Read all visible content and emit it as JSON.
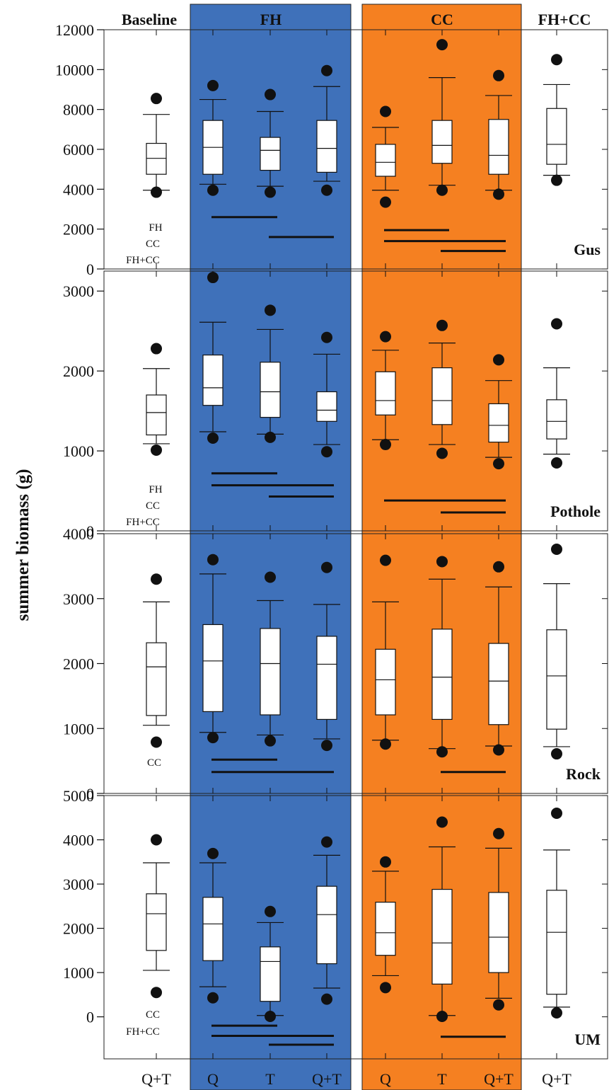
{
  "ylabel": "summer biomass (g)",
  "x_tick_labels": [
    "Q+T",
    "Q",
    "T",
    "Q+T",
    "Q",
    "T",
    "Q+T",
    "Q+T"
  ],
  "group_headers": [
    "Baseline",
    "FH",
    "CC",
    "FH+CC"
  ],
  "colors": {
    "fh": "#3f71ba",
    "cc": "#f58021",
    "box_fill": "#ffffff",
    "ink": "#111111"
  },
  "chart_data": [
    {
      "type": "box",
      "panel": "Gus",
      "ylim": [
        0,
        12000
      ],
      "yticks": [
        0,
        2000,
        4000,
        6000,
        8000,
        10000,
        12000
      ],
      "ytick_labels": [
        "0",
        "2000",
        "4000",
        "6000",
        "8000",
        "10000",
        "12000"
      ],
      "boxes": [
        {
          "group": "Baseline",
          "treatment": "Q+T",
          "low_outlier": 3850,
          "whisker_low": 3950,
          "q1": 4750,
          "median": 5550,
          "q3": 6300,
          "whisker_high": 7750,
          "high_outlier": 8550
        },
        {
          "group": "FH",
          "treatment": "Q",
          "low_outlier": 3950,
          "whisker_low": 4250,
          "q1": 4750,
          "median": 6100,
          "q3": 7450,
          "whisker_high": 8500,
          "high_outlier": 9200
        },
        {
          "group": "FH",
          "treatment": "T",
          "low_outlier": 3850,
          "whisker_low": 4150,
          "q1": 4950,
          "median": 5950,
          "q3": 6600,
          "whisker_high": 7900,
          "high_outlier": 8750
        },
        {
          "group": "FH",
          "treatment": "Q+T",
          "low_outlier": 3950,
          "whisker_low": 4400,
          "q1": 4850,
          "median": 6050,
          "q3": 7450,
          "whisker_high": 9150,
          "high_outlier": 9950
        },
        {
          "group": "CC",
          "treatment": "Q",
          "low_outlier": 3350,
          "whisker_low": 3950,
          "q1": 4650,
          "median": 5350,
          "q3": 6250,
          "whisker_high": 7100,
          "high_outlier": 7900
        },
        {
          "group": "CC",
          "treatment": "T",
          "low_outlier": 3950,
          "whisker_low": 4200,
          "q1": 5300,
          "median": 6200,
          "q3": 7450,
          "whisker_high": 9600,
          "high_outlier": 11250
        },
        {
          "group": "CC",
          "treatment": "Q+T",
          "low_outlier": 3750,
          "whisker_low": 3950,
          "q1": 4750,
          "median": 5700,
          "q3": 7500,
          "whisker_high": 8700,
          "high_outlier": 9700
        },
        {
          "group": "FH+CC",
          "treatment": "Q+T",
          "low_outlier": 4450,
          "whisker_low": 4700,
          "q1": 5250,
          "median": 6250,
          "q3": 8050,
          "whisker_high": 9250,
          "high_outlier": 10500
        }
      ],
      "significance_lines": [
        {
          "from": 1,
          "to": 2,
          "y": 2600
        },
        {
          "from": 2,
          "to": 3,
          "y": 1600
        },
        {
          "from": 4,
          "to": 5,
          "y": 1950
        },
        {
          "from": 4,
          "to": 6,
          "y": 1400
        },
        {
          "from": 5,
          "to": 6,
          "y": 900
        }
      ],
      "baseline_notes": [
        "FH",
        "CC",
        "FH+CC"
      ]
    },
    {
      "type": "box",
      "panel": "Pothole",
      "ylim": [
        0,
        3250
      ],
      "yticks": [
        0,
        1000,
        2000,
        3000
      ],
      "ytick_labels": [
        "0",
        "1000",
        "2000",
        "3000"
      ],
      "boxes": [
        {
          "group": "Baseline",
          "treatment": "Q+T",
          "low_outlier": 1010,
          "whisker_low": 1090,
          "q1": 1200,
          "median": 1480,
          "q3": 1700,
          "whisker_high": 2030,
          "high_outlier": 2280
        },
        {
          "group": "FH",
          "treatment": "Q",
          "low_outlier": 1160,
          "whisker_low": 1240,
          "q1": 1570,
          "median": 1790,
          "q3": 2200,
          "whisker_high": 2610,
          "high_outlier": 3170
        },
        {
          "group": "FH",
          "treatment": "T",
          "low_outlier": 1170,
          "whisker_low": 1210,
          "q1": 1420,
          "median": 1740,
          "q3": 2110,
          "whisker_high": 2520,
          "high_outlier": 2760
        },
        {
          "group": "FH",
          "treatment": "Q+T",
          "low_outlier": 990,
          "whisker_low": 1080,
          "q1": 1370,
          "median": 1510,
          "q3": 1740,
          "whisker_high": 2210,
          "high_outlier": 2420
        },
        {
          "group": "CC",
          "treatment": "Q",
          "low_outlier": 1080,
          "whisker_low": 1140,
          "q1": 1450,
          "median": 1630,
          "q3": 1990,
          "whisker_high": 2260,
          "high_outlier": 2430
        },
        {
          "group": "CC",
          "treatment": "T",
          "low_outlier": 970,
          "whisker_low": 1080,
          "q1": 1330,
          "median": 1630,
          "q3": 2040,
          "whisker_high": 2350,
          "high_outlier": 2570
        },
        {
          "group": "CC",
          "treatment": "Q+T",
          "low_outlier": 840,
          "whisker_low": 920,
          "q1": 1110,
          "median": 1320,
          "q3": 1590,
          "whisker_high": 1880,
          "high_outlier": 2140
        },
        {
          "group": "FH+CC",
          "treatment": "Q+T",
          "low_outlier": 850,
          "whisker_low": 960,
          "q1": 1150,
          "median": 1370,
          "q3": 1640,
          "whisker_high": 2040,
          "high_outlier": 2590
        }
      ],
      "significance_lines": [
        {
          "from": 1,
          "to": 2,
          "y": 720
        },
        {
          "from": 1,
          "to": 3,
          "y": 570
        },
        {
          "from": 2,
          "to": 3,
          "y": 430
        },
        {
          "from": 4,
          "to": 6,
          "y": 380
        },
        {
          "from": 5,
          "to": 6,
          "y": 230
        }
      ],
      "baseline_notes": [
        "FH",
        "CC",
        "FH+CC"
      ]
    },
    {
      "type": "box",
      "panel": "Rock",
      "ylim": [
        0,
        4000
      ],
      "yticks": [
        0,
        1000,
        2000,
        3000,
        4000
      ],
      "ytick_labels": [
        "0",
        "1000",
        "2000",
        "3000",
        "4000"
      ],
      "boxes": [
        {
          "group": "Baseline",
          "treatment": "Q+T",
          "low_outlier": 790,
          "whisker_low": 1050,
          "q1": 1200,
          "median": 1950,
          "q3": 2320,
          "whisker_high": 2950,
          "high_outlier": 3300
        },
        {
          "group": "FH",
          "treatment": "Q",
          "low_outlier": 860,
          "whisker_low": 940,
          "q1": 1260,
          "median": 2040,
          "q3": 2600,
          "whisker_high": 3380,
          "high_outlier": 3600
        },
        {
          "group": "FH",
          "treatment": "T",
          "low_outlier": 810,
          "whisker_low": 900,
          "q1": 1210,
          "median": 2000,
          "q3": 2540,
          "whisker_high": 2970,
          "high_outlier": 3330
        },
        {
          "group": "FH",
          "treatment": "Q+T",
          "low_outlier": 740,
          "whisker_low": 840,
          "q1": 1140,
          "median": 1990,
          "q3": 2420,
          "whisker_high": 2910,
          "high_outlier": 3480
        },
        {
          "group": "CC",
          "treatment": "Q",
          "low_outlier": 760,
          "whisker_low": 820,
          "q1": 1210,
          "median": 1750,
          "q3": 2220,
          "whisker_high": 2950,
          "high_outlier": 3590
        },
        {
          "group": "CC",
          "treatment": "T",
          "low_outlier": 640,
          "whisker_low": 690,
          "q1": 1140,
          "median": 1790,
          "q3": 2530,
          "whisker_high": 3300,
          "high_outlier": 3570
        },
        {
          "group": "CC",
          "treatment": "Q+T",
          "low_outlier": 670,
          "whisker_low": 730,
          "q1": 1060,
          "median": 1730,
          "q3": 2310,
          "whisker_high": 3180,
          "high_outlier": 3490
        },
        {
          "group": "FH+CC",
          "treatment": "Q+T",
          "low_outlier": 610,
          "whisker_low": 720,
          "q1": 990,
          "median": 1810,
          "q3": 2520,
          "whisker_high": 3230,
          "high_outlier": 3760
        }
      ],
      "significance_lines": [
        {
          "from": 1,
          "to": 2,
          "y": 520
        },
        {
          "from": 1,
          "to": 3,
          "y": 330
        },
        {
          "from": 5,
          "to": 6,
          "y": 330
        }
      ],
      "baseline_notes": [
        "CC"
      ]
    },
    {
      "type": "box",
      "panel": "UM",
      "ylim": [
        -950,
        5000
      ],
      "yticks": [
        0,
        1000,
        2000,
        3000,
        4000,
        5000
      ],
      "ytick_labels": [
        "0",
        "1000",
        "2000",
        "3000",
        "4000",
        "5000"
      ],
      "boxes": [
        {
          "group": "Baseline",
          "treatment": "Q+T",
          "low_outlier": 550,
          "whisker_low": 1050,
          "q1": 1500,
          "median": 2330,
          "q3": 2780,
          "whisker_high": 3480,
          "high_outlier": 4000
        },
        {
          "group": "FH",
          "treatment": "Q",
          "low_outlier": 430,
          "whisker_low": 680,
          "q1": 1270,
          "median": 2100,
          "q3": 2700,
          "whisker_high": 3480,
          "high_outlier": 3690
        },
        {
          "group": "FH",
          "treatment": "T",
          "low_outlier": 10,
          "whisker_low": 30,
          "q1": 350,
          "median": 1250,
          "q3": 1580,
          "whisker_high": 2130,
          "high_outlier": 2380
        },
        {
          "group": "FH",
          "treatment": "Q+T",
          "low_outlier": 400,
          "whisker_low": 650,
          "q1": 1200,
          "median": 2310,
          "q3": 2950,
          "whisker_high": 3650,
          "high_outlier": 3950
        },
        {
          "group": "CC",
          "treatment": "Q",
          "low_outlier": 660,
          "whisker_low": 930,
          "q1": 1390,
          "median": 1900,
          "q3": 2590,
          "whisker_high": 3290,
          "high_outlier": 3500
        },
        {
          "group": "CC",
          "treatment": "T",
          "low_outlier": 10,
          "whisker_low": 30,
          "q1": 740,
          "median": 1670,
          "q3": 2880,
          "whisker_high": 3840,
          "high_outlier": 4400
        },
        {
          "group": "CC",
          "treatment": "Q+T",
          "low_outlier": 270,
          "whisker_low": 420,
          "q1": 1000,
          "median": 1800,
          "q3": 2810,
          "whisker_high": 3810,
          "high_outlier": 4140
        },
        {
          "group": "FH+CC",
          "treatment": "Q+T",
          "low_outlier": 90,
          "whisker_low": 220,
          "q1": 510,
          "median": 1910,
          "q3": 2860,
          "whisker_high": 3770,
          "high_outlier": 4600
        }
      ],
      "significance_lines": [
        {
          "from": 1,
          "to": 2,
          "y": -200
        },
        {
          "from": 1,
          "to": 3,
          "y": -430
        },
        {
          "from": 2,
          "to": 3,
          "y": -630
        },
        {
          "from": 5,
          "to": 6,
          "y": -450
        }
      ],
      "baseline_notes": [
        "CC",
        "FH+CC"
      ]
    }
  ]
}
